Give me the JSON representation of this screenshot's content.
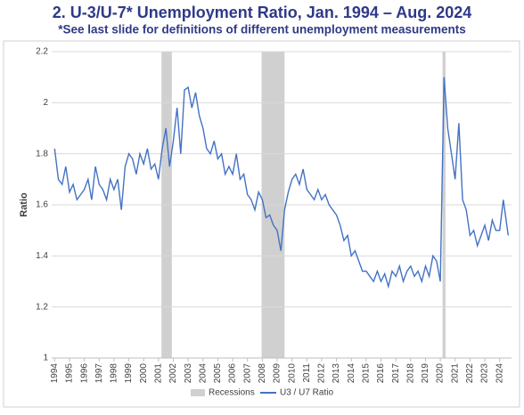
{
  "chart_data": {
    "type": "line",
    "title": "2. U-3/U-7* Unemployment Ratio, Jan. 1994 – Aug. 2024",
    "subtitle": "*See last slide for definitions of different unemployment measurements",
    "ylabel": "Ratio",
    "x": [
      1994,
      1994.25,
      1994.5,
      1994.75,
      1995,
      1995.25,
      1995.5,
      1995.75,
      1996,
      1996.25,
      1996.5,
      1996.75,
      1997,
      1997.25,
      1997.5,
      1997.75,
      1998,
      1998.25,
      1998.5,
      1998.75,
      1999,
      1999.25,
      1999.5,
      1999.75,
      2000,
      2000.25,
      2000.5,
      2000.75,
      2001,
      2001.25,
      2001.5,
      2001.75,
      2002,
      2002.25,
      2002.5,
      2002.75,
      2003,
      2003.25,
      2003.5,
      2003.75,
      2004,
      2004.25,
      2004.5,
      2004.75,
      2005,
      2005.25,
      2005.5,
      2005.75,
      2006,
      2006.25,
      2006.5,
      2006.75,
      2007,
      2007.25,
      2007.5,
      2007.75,
      2008,
      2008.25,
      2008.5,
      2008.75,
      2009,
      2009.25,
      2009.5,
      2009.75,
      2010,
      2010.25,
      2010.5,
      2010.75,
      2011,
      2011.25,
      2011.5,
      2011.75,
      2012,
      2012.25,
      2012.5,
      2012.75,
      2013,
      2013.25,
      2013.5,
      2013.75,
      2014,
      2014.25,
      2014.5,
      2014.75,
      2015,
      2015.25,
      2015.5,
      2015.75,
      2016,
      2016.25,
      2016.5,
      2016.75,
      2017,
      2017.25,
      2017.5,
      2017.75,
      2018,
      2018.25,
      2018.5,
      2018.75,
      2019,
      2019.25,
      2019.5,
      2019.75,
      2020,
      2020.25,
      2020.5,
      2020.75,
      2021,
      2021.25,
      2021.5,
      2021.75,
      2022,
      2022.25,
      2022.5,
      2022.75,
      2023,
      2023.25,
      2023.5,
      2023.75,
      2024,
      2024.25,
      2024.58
    ],
    "series": [
      {
        "name": "U3 / U7 Ratio",
        "color": "#4472c4",
        "values": [
          1.82,
          1.7,
          1.68,
          1.75,
          1.65,
          1.68,
          1.62,
          1.64,
          1.66,
          1.7,
          1.62,
          1.75,
          1.68,
          1.66,
          1.62,
          1.7,
          1.66,
          1.7,
          1.58,
          1.75,
          1.8,
          1.78,
          1.72,
          1.8,
          1.76,
          1.82,
          1.74,
          1.76,
          1.7,
          1.82,
          1.9,
          1.75,
          1.85,
          1.98,
          1.8,
          2.05,
          2.06,
          1.98,
          2.04,
          1.95,
          1.9,
          1.82,
          1.8,
          1.85,
          1.78,
          1.8,
          1.72,
          1.75,
          1.72,
          1.8,
          1.7,
          1.72,
          1.64,
          1.62,
          1.58,
          1.65,
          1.62,
          1.55,
          1.56,
          1.52,
          1.5,
          1.42,
          1.58,
          1.65,
          1.7,
          1.72,
          1.68,
          1.74,
          1.66,
          1.64,
          1.62,
          1.66,
          1.62,
          1.64,
          1.6,
          1.58,
          1.56,
          1.52,
          1.46,
          1.48,
          1.4,
          1.42,
          1.38,
          1.34,
          1.34,
          1.32,
          1.3,
          1.34,
          1.3,
          1.33,
          1.28,
          1.34,
          1.32,
          1.36,
          1.3,
          1.34,
          1.36,
          1.32,
          1.34,
          1.3,
          1.36,
          1.32,
          1.4,
          1.38,
          1.3,
          2.1,
          1.9,
          1.8,
          1.7,
          1.92,
          1.62,
          1.58,
          1.48,
          1.5,
          1.44,
          1.48,
          1.52,
          1.46,
          1.54,
          1.5,
          1.5,
          1.62,
          1.48
        ]
      }
    ],
    "recessions": {
      "name": "Recessions",
      "color": "#d0d0d0",
      "ranges": [
        [
          2001.2,
          2001.9
        ],
        [
          2007.95,
          2009.5
        ],
        [
          2020.15,
          2020.35
        ]
      ]
    },
    "xlim": [
      1993.8,
      2024.8
    ],
    "xticks": [
      1994,
      1995,
      1996,
      1997,
      1998,
      1999,
      2000,
      2001,
      2002,
      2003,
      2004,
      2005,
      2006,
      2007,
      2008,
      2009,
      2010,
      2011,
      2012,
      2013,
      2014,
      2015,
      2016,
      2017,
      2018,
      2019,
      2020,
      2021,
      2022,
      2023,
      2024
    ],
    "ylim": [
      1,
      2.2
    ],
    "yticks": [
      1,
      1.2,
      1.4,
      1.6,
      1.8,
      2,
      2.2
    ],
    "grid": true
  }
}
